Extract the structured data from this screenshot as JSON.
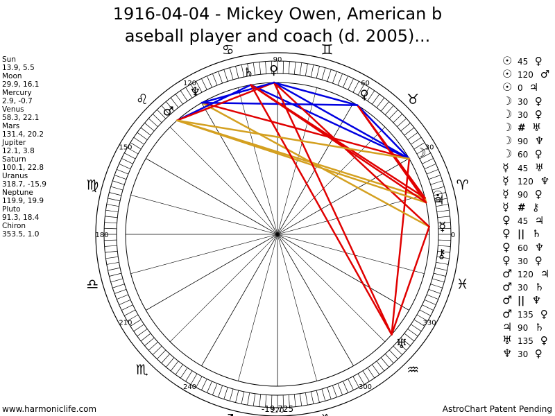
{
  "title": {
    "line1": "1916-04-04 - Mickey Owen, American b",
    "line2": "aseball player and coach (d. 2005)..."
  },
  "planets": [
    {
      "name": "Sun",
      "values": "13.9, 5.5"
    },
    {
      "name": "Moon",
      "values": "29.9, 16.1"
    },
    {
      "name": "Mercury",
      "values": "2.9, -0.7"
    },
    {
      "name": "Venus",
      "values": "58.3, 22.1"
    },
    {
      "name": "Mars",
      "values": "131.4, 20.2"
    },
    {
      "name": "Jupiter",
      "values": "12.1, 3.8"
    },
    {
      "name": "Saturn",
      "values": "100.1, 22.8"
    },
    {
      "name": "Uranus",
      "values": "318.7, -15.9"
    },
    {
      "name": "Neptune",
      "values": "119.9, 19.9"
    },
    {
      "name": "Pluto",
      "values": "91.3, 18.4"
    },
    {
      "name": "Chiron",
      "values": "353.5, 1.0"
    }
  ],
  "aspects": [
    {
      "p1": "☉",
      "angle": "45",
      "p2": "♀"
    },
    {
      "p1": "☉",
      "angle": "120",
      "p2": "♂"
    },
    {
      "p1": "☉",
      "angle": "0",
      "p2": "♃"
    },
    {
      "p1": "☽",
      "angle": "30",
      "p2": "♀"
    },
    {
      "p1": "☽",
      "angle": "30",
      "p2": "♀"
    },
    {
      "p1": "☽",
      "angle": "#",
      "p2": "♅"
    },
    {
      "p1": "☽",
      "angle": "90",
      "p2": "♆"
    },
    {
      "p1": "☽",
      "angle": "60",
      "p2": "♀"
    },
    {
      "p1": "☿",
      "angle": "45",
      "p2": "♅"
    },
    {
      "p1": "☿",
      "angle": "120",
      "p2": "♆"
    },
    {
      "p1": "☿",
      "angle": "90",
      "p2": "♀"
    },
    {
      "p1": "☿",
      "angle": "#",
      "p2": "⚷"
    },
    {
      "p1": "♀",
      "angle": "45",
      "p2": "♃"
    },
    {
      "p1": "♀",
      "angle": "||",
      "p2": "♄"
    },
    {
      "p1": "♀",
      "angle": "60",
      "p2": "♆"
    },
    {
      "p1": "♀",
      "angle": "30",
      "p2": "♀"
    },
    {
      "p1": "♂",
      "angle": "120",
      "p2": "♃"
    },
    {
      "p1": "♂",
      "angle": "30",
      "p2": "♄"
    },
    {
      "p1": "♂",
      "angle": "||",
      "p2": "♆"
    },
    {
      "p1": "♂",
      "angle": "135",
      "p2": "♀"
    },
    {
      "p1": "♃",
      "angle": "90",
      "p2": "♄"
    },
    {
      "p1": "♅",
      "angle": "135",
      "p2": "♀"
    },
    {
      "p1": "♆",
      "angle": "30",
      "p2": "♀"
    }
  ],
  "footer": {
    "left": "www.harmoniclife.com",
    "center": "-19,725",
    "right": "AstroChart Patent Pending"
  },
  "chart_data": {
    "type": "other",
    "degree_labels": [
      "0",
      "30",
      "60",
      "90",
      "120",
      "150",
      "180",
      "210",
      "240",
      "270",
      "300",
      "330"
    ],
    "zodiac_signs": [
      {
        "name": "Aries",
        "glyph": "♈",
        "lon": 15
      },
      {
        "name": "Taurus",
        "glyph": "♉",
        "lon": 45
      },
      {
        "name": "Gemini",
        "glyph": "♊",
        "lon": 75
      },
      {
        "name": "Cancer",
        "glyph": "♋",
        "lon": 105
      },
      {
        "name": "Leo",
        "glyph": "♌",
        "lon": 135
      },
      {
        "name": "Virgo",
        "glyph": "♍",
        "lon": 165
      },
      {
        "name": "Libra",
        "glyph": "♎",
        "lon": 195
      },
      {
        "name": "Scorpio",
        "glyph": "♏",
        "lon": 225
      },
      {
        "name": "Sagittarius",
        "glyph": "♐",
        "lon": 255
      },
      {
        "name": "Capricorn",
        "glyph": "♑",
        "lon": 285
      },
      {
        "name": "Aquarius",
        "glyph": "♒",
        "lon": 315
      },
      {
        "name": "Pisces",
        "glyph": "♓",
        "lon": 345
      }
    ],
    "bodies": [
      {
        "key": "sun",
        "glyph": "☉",
        "lon": 13.9
      },
      {
        "key": "moon",
        "glyph": "☽",
        "lon": 29.9
      },
      {
        "key": "mercury",
        "glyph": "☿",
        "lon": 2.9
      },
      {
        "key": "venus",
        "glyph": "♀",
        "lon": 58.3
      },
      {
        "key": "mars",
        "glyph": "♂",
        "lon": 131.4
      },
      {
        "key": "jupiter",
        "glyph": "♃",
        "lon": 12.1
      },
      {
        "key": "saturn",
        "glyph": "♄",
        "lon": 100.1
      },
      {
        "key": "uranus",
        "glyph": "♅",
        "lon": 318.7
      },
      {
        "key": "neptune",
        "glyph": "♆",
        "lon": 119.9
      },
      {
        "key": "pluto",
        "glyph": "♀",
        "lon": 91.3
      },
      {
        "key": "chiron",
        "glyph": "⚷",
        "lon": 353.5
      }
    ],
    "aspect_lines": [
      {
        "a": "sun",
        "b": "venus",
        "color": "#e00000"
      },
      {
        "a": "sun",
        "b": "mars",
        "color": "#d4a020"
      },
      {
        "a": "sun",
        "b": "jupiter",
        "color": "#d4a020"
      },
      {
        "a": "moon",
        "b": "venus",
        "color": "#0000e0"
      },
      {
        "a": "moon",
        "b": "pluto",
        "color": "#0000e0"
      },
      {
        "a": "moon",
        "b": "uranus",
        "color": "#e00000"
      },
      {
        "a": "moon",
        "b": "neptune",
        "color": "#e00000"
      },
      {
        "a": "moon",
        "b": "saturn",
        "color": "#0000e0"
      },
      {
        "a": "mercury",
        "b": "uranus",
        "color": "#e00000"
      },
      {
        "a": "mercury",
        "b": "neptune",
        "color": "#d4a020"
      },
      {
        "a": "mercury",
        "b": "pluto",
        "color": "#e00000"
      },
      {
        "a": "venus",
        "b": "jupiter",
        "color": "#e00000"
      },
      {
        "a": "venus",
        "b": "neptune",
        "color": "#0000e0"
      },
      {
        "a": "venus",
        "b": "pluto",
        "color": "#0000e0"
      },
      {
        "a": "mars",
        "b": "jupiter",
        "color": "#d4a020"
      },
      {
        "a": "mars",
        "b": "saturn",
        "color": "#0000e0"
      },
      {
        "a": "mars",
        "b": "pluto",
        "color": "#e00000"
      },
      {
        "a": "jupiter",
        "b": "saturn",
        "color": "#e00000"
      },
      {
        "a": "uranus",
        "b": "pluto",
        "color": "#e00000"
      },
      {
        "a": "neptune",
        "b": "pluto",
        "color": "#0000e0"
      },
      {
        "a": "sun",
        "b": "saturn",
        "color": "#e00000"
      },
      {
        "a": "saturn",
        "b": "uranus",
        "color": "#e00000"
      },
      {
        "a": "moon",
        "b": "mars",
        "color": "#d4a020"
      }
    ],
    "colors": {
      "hard": "#e00000",
      "soft": "#0000e0",
      "minor": "#d4a020"
    }
  }
}
